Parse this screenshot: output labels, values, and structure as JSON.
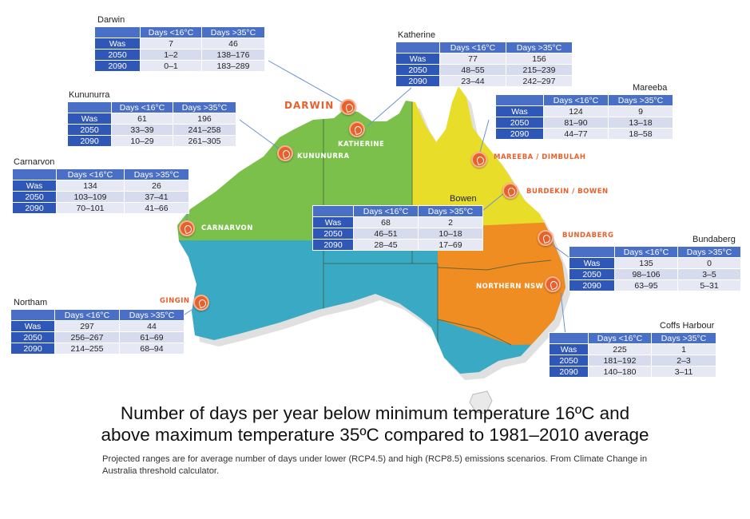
{
  "colors": {
    "nt_wa_north": "#7bc04a",
    "qld_north": "#e8de2a",
    "south_west": "#39a9c4",
    "se_orange": "#ef8c22",
    "marker": "#e8602b",
    "table_header": "#4a6fc7"
  },
  "columns": {
    "cold": "Days <16°C",
    "hot": "Days >35°C"
  },
  "row_labels": [
    "Was",
    "2050",
    "2090"
  ],
  "title_line1": "Number of days per year below minimum temperature 16ºC and",
  "title_line2": "above maximum temperature 35ºC compared to 1981–2010 average",
  "subtitle": "Projected ranges are for average number of days under lower (RCP4.5) and high (RCP8.5) emissions scenarios. From Climate Change in Australia threshold calculator.",
  "map_labels": {
    "darwin": "DARWIN",
    "katherine": "KATHERINE",
    "kununurra": "KUNUNURRA",
    "carnarvon": "CARNARVON",
    "gingin": "GINGIN",
    "mareeba": "MAREEBA / DIMBULAH",
    "burdekin": "BURDEKIN / BOWEN",
    "bundaberg": "BUNDABERG",
    "northern_nsw": "NORTHERN NSW"
  },
  "towns": {
    "darwin": {
      "name": "Darwin",
      "rows": [
        [
          "7",
          "46"
        ],
        [
          "1–2",
          "138–176"
        ],
        [
          "0–1",
          "183–289"
        ]
      ]
    },
    "katherine": {
      "name": "Katherine",
      "rows": [
        [
          "77",
          "156"
        ],
        [
          "48–55",
          "215–239"
        ],
        [
          "23–44",
          "242–297"
        ]
      ]
    },
    "kununurra": {
      "name": "Kununurra",
      "rows": [
        [
          "61",
          "196"
        ],
        [
          "33–39",
          "241–258"
        ],
        [
          "10–29",
          "261–305"
        ]
      ]
    },
    "mareeba": {
      "name": "Mareeba",
      "rows": [
        [
          "124",
          "9"
        ],
        [
          "81–90",
          "13–18"
        ],
        [
          "44–77",
          "18–58"
        ]
      ]
    },
    "carnarvon": {
      "name": "Carnarvon",
      "rows": [
        [
          "134",
          "26"
        ],
        [
          "103–109",
          "37–41"
        ],
        [
          "70–101",
          "41–66"
        ]
      ]
    },
    "bowen": {
      "name": "Bowen",
      "rows": [
        [
          "68",
          "2"
        ],
        [
          "46–51",
          "10–18"
        ],
        [
          "28–45",
          "17–69"
        ]
      ]
    },
    "bundaberg": {
      "name": "Bundaberg",
      "rows": [
        [
          "135",
          "0"
        ],
        [
          "98–106",
          "3–5"
        ],
        [
          "63–95",
          "5–31"
        ]
      ]
    },
    "northam": {
      "name": "Northam",
      "rows": [
        [
          "297",
          "44"
        ],
        [
          "256–267",
          "61–69"
        ],
        [
          "214–255",
          "68–94"
        ]
      ]
    },
    "coffs": {
      "name": "Coffs Harbour",
      "rows": [
        [
          "225",
          "1"
        ],
        [
          "181–192",
          "2–3"
        ],
        [
          "140–180",
          "3–11"
        ]
      ]
    }
  }
}
